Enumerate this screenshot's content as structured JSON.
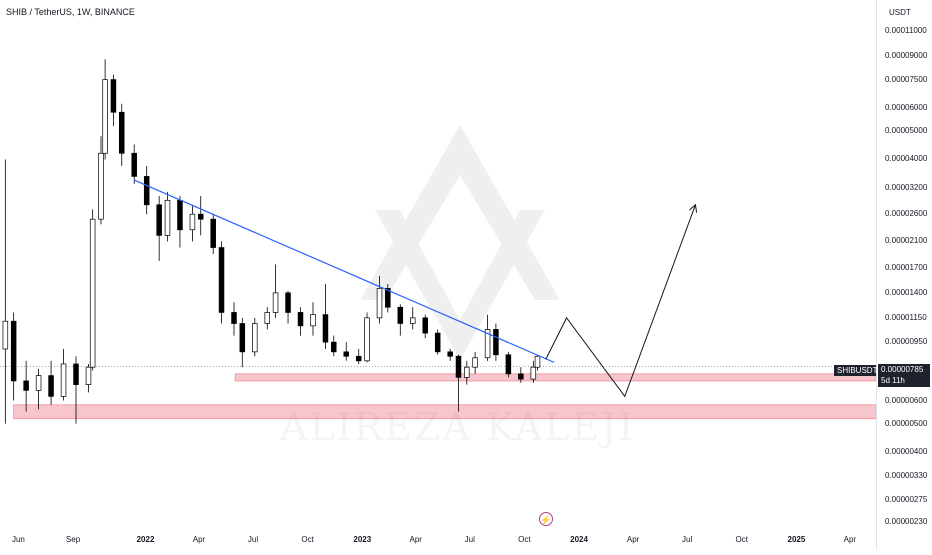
{
  "header": {
    "symbol_title": "SHIB / TetherUS, 1W, BINANCE"
  },
  "watermark": {
    "text": "ALIREZA KALEJI"
  },
  "price_scale": {
    "currency": "USDT",
    "ticks": [
      "0.00011000",
      "0.00009000",
      "0.00007500",
      "0.00006000",
      "0.00005000",
      "0.00004000",
      "0.00003200",
      "0.00002600",
      "0.00002100",
      "0.00001700",
      "0.00001400",
      "0.00001150",
      "0.00000950",
      "0.00000600",
      "0.00000500",
      "0.00000400",
      "0.00000330",
      "0.00000275",
      "0.00000230"
    ],
    "last_tag": {
      "symbol": "SHIBUSDT",
      "price": "0.00000785",
      "countdown": "5d 11h"
    }
  },
  "time_axis": {
    "labels": [
      "Jun",
      "Sep",
      "2022",
      "Apr",
      "Jul",
      "Oct",
      "2023",
      "Apr",
      "Jul",
      "Oct",
      "2024",
      "Apr",
      "Jul",
      "Oct",
      "2025",
      "Apr"
    ]
  },
  "colors": {
    "bull": "#ffffff",
    "bear": "#000000",
    "trendline": "#2962ff",
    "zone_fill": "#f7c6cc",
    "zone_stroke": "#f08c98",
    "projection": "#131722",
    "bolt": "#b33a8a"
  },
  "chart_data": {
    "type": "candlestick",
    "title": "SHIB / TetherUS, 1W, BINANCE",
    "y_scale": "log",
    "ylim": [
      2.2e-06,
      0.000118
    ],
    "x_range": [
      "2021-05-01",
      "2025-05-15"
    ],
    "candles": [
      {
        "date": "2021-05-10",
        "open": 9e-06,
        "high": 4e-05,
        "low": 5e-06,
        "close": 1.12e-05
      },
      {
        "date": "2021-05-24",
        "open": 1.12e-05,
        "high": 1.2e-05,
        "low": 6e-06,
        "close": 7e-06
      },
      {
        "date": "2021-06-14",
        "open": 7e-06,
        "high": 8.2e-06,
        "low": 5.5e-06,
        "close": 6.5e-06
      },
      {
        "date": "2021-07-05",
        "open": 6.5e-06,
        "high": 7.7e-06,
        "low": 5.6e-06,
        "close": 7.3e-06
      },
      {
        "date": "2021-07-26",
        "open": 7.3e-06,
        "high": 8.2e-06,
        "low": 5.8e-06,
        "close": 6.2e-06
      },
      {
        "date": "2021-08-16",
        "open": 6.2e-06,
        "high": 9e-06,
        "low": 6e-06,
        "close": 8e-06
      },
      {
        "date": "2021-09-06",
        "open": 8e-06,
        "high": 8.5e-06,
        "low": 5e-06,
        "close": 6.8e-06
      },
      {
        "date": "2021-09-27",
        "open": 6.8e-06,
        "high": 8e-06,
        "low": 6.4e-06,
        "close": 7.8e-06
      },
      {
        "date": "2021-10-04",
        "open": 7.8e-06,
        "high": 2.7e-05,
        "low": 7.6e-06,
        "close": 2.5e-05
      },
      {
        "date": "2021-10-18",
        "open": 2.5e-05,
        "high": 4.8e-05,
        "low": 2.4e-05,
        "close": 4.2e-05
      },
      {
        "date": "2021-10-25",
        "open": 4.2e-05,
        "high": 8.8e-05,
        "low": 4e-05,
        "close": 7.5e-05
      },
      {
        "date": "2021-11-08",
        "open": 7.5e-05,
        "high": 7.8e-05,
        "low": 5.2e-05,
        "close": 5.8e-05
      },
      {
        "date": "2021-11-22",
        "open": 5.8e-05,
        "high": 6.2e-05,
        "low": 3.8e-05,
        "close": 4.2e-05
      },
      {
        "date": "2021-12-13",
        "open": 4.2e-05,
        "high": 4.5e-05,
        "low": 3.3e-05,
        "close": 3.5e-05
      },
      {
        "date": "2022-01-03",
        "open": 3.5e-05,
        "high": 3.8e-05,
        "low": 2.6e-05,
        "close": 2.8e-05
      },
      {
        "date": "2022-01-24",
        "open": 2.8e-05,
        "high": 3e-05,
        "low": 1.8e-05,
        "close": 2.2e-05
      },
      {
        "date": "2022-02-07",
        "open": 2.2e-05,
        "high": 3.1e-05,
        "low": 2.1e-05,
        "close": 2.9e-05
      },
      {
        "date": "2022-02-28",
        "open": 2.9e-05,
        "high": 3e-05,
        "low": 2e-05,
        "close": 2.3e-05
      },
      {
        "date": "2022-03-21",
        "open": 2.3e-05,
        "high": 2.8e-05,
        "low": 2.1e-05,
        "close": 2.6e-05
      },
      {
        "date": "2022-04-04",
        "open": 2.6e-05,
        "high": 3e-05,
        "low": 2.2e-05,
        "close": 2.5e-05
      },
      {
        "date": "2022-04-25",
        "open": 2.5e-05,
        "high": 2.6e-05,
        "low": 1.9e-05,
        "close": 2e-05
      },
      {
        "date": "2022-05-09",
        "open": 2e-05,
        "high": 2.1e-05,
        "low": 1.1e-05,
        "close": 1.2e-05
      },
      {
        "date": "2022-05-30",
        "open": 1.2e-05,
        "high": 1.3e-05,
        "low": 1e-05,
        "close": 1.1e-05
      },
      {
        "date": "2022-06-13",
        "open": 1.1e-05,
        "high": 1.15e-05,
        "low": 7.8e-06,
        "close": 8.8e-06
      },
      {
        "date": "2022-07-04",
        "open": 8.8e-06,
        "high": 1.15e-05,
        "low": 8.5e-06,
        "close": 1.1e-05
      },
      {
        "date": "2022-07-25",
        "open": 1.1e-05,
        "high": 1.25e-05,
        "low": 1.05e-05,
        "close": 1.2e-05
      },
      {
        "date": "2022-08-08",
        "open": 1.2e-05,
        "high": 1.75e-05,
        "low": 1.15e-05,
        "close": 1.4e-05
      },
      {
        "date": "2022-08-29",
        "open": 1.4e-05,
        "high": 1.42e-05,
        "low": 1.1e-05,
        "close": 1.2e-05
      },
      {
        "date": "2022-09-19",
        "open": 1.2e-05,
        "high": 1.25e-05,
        "low": 1e-05,
        "close": 1.08e-05
      },
      {
        "date": "2022-10-10",
        "open": 1.08e-05,
        "high": 1.3e-05,
        "low": 1e-05,
        "close": 1.18e-05
      },
      {
        "date": "2022-10-31",
        "open": 1.18e-05,
        "high": 1.5e-05,
        "low": 9e-06,
        "close": 9.5e-06
      },
      {
        "date": "2022-11-14",
        "open": 9.5e-06,
        "high": 1e-05,
        "low": 8.5e-06,
        "close": 8.8e-06
      },
      {
        "date": "2022-12-05",
        "open": 8.8e-06,
        "high": 9.5e-06,
        "low": 8.2e-06,
        "close": 8.5e-06
      },
      {
        "date": "2022-12-26",
        "open": 8.5e-06,
        "high": 9e-06,
        "low": 8e-06,
        "close": 8.2e-06
      },
      {
        "date": "2023-01-09",
        "open": 8.2e-06,
        "high": 1.2e-05,
        "low": 8.1e-06,
        "close": 1.15e-05
      },
      {
        "date": "2023-01-30",
        "open": 1.15e-05,
        "high": 1.6e-05,
        "low": 1.1e-05,
        "close": 1.45e-05
      },
      {
        "date": "2023-02-13",
        "open": 1.45e-05,
        "high": 1.5e-05,
        "low": 1.2e-05,
        "close": 1.25e-05
      },
      {
        "date": "2023-03-06",
        "open": 1.25e-05,
        "high": 1.28e-05,
        "low": 1e-05,
        "close": 1.1e-05
      },
      {
        "date": "2023-03-27",
        "open": 1.1e-05,
        "high": 1.25e-05,
        "low": 1.05e-05,
        "close": 1.15e-05
      },
      {
        "date": "2023-04-17",
        "open": 1.15e-05,
        "high": 1.18e-05,
        "low": 9.8e-06,
        "close": 1.02e-05
      },
      {
        "date": "2023-05-08",
        "open": 1.02e-05,
        "high": 1.05e-05,
        "low": 8.6e-06,
        "close": 8.8e-06
      },
      {
        "date": "2023-05-29",
        "open": 8.8e-06,
        "high": 9e-06,
        "low": 8.2e-06,
        "close": 8.5e-06
      },
      {
        "date": "2023-06-12",
        "open": 8.5e-06,
        "high": 8.6e-06,
        "low": 5.5e-06,
        "close": 7.2e-06
      },
      {
        "date": "2023-06-26",
        "open": 7.2e-06,
        "high": 8.2e-06,
        "low": 6.8e-06,
        "close": 7.8e-06
      },
      {
        "date": "2023-07-10",
        "open": 7.8e-06,
        "high": 8.8e-06,
        "low": 7.4e-06,
        "close": 8.4e-06
      },
      {
        "date": "2023-07-31",
        "open": 8.4e-06,
        "high": 1.18e-05,
        "low": 8.2e-06,
        "close": 1.05e-05
      },
      {
        "date": "2023-08-14",
        "open": 1.05e-05,
        "high": 1.1e-05,
        "low": 8.2e-06,
        "close": 8.6e-06
      },
      {
        "date": "2023-09-04",
        "open": 8.6e-06,
        "high": 8.8e-06,
        "low": 7.2e-06,
        "close": 7.4e-06
      },
      {
        "date": "2023-09-25",
        "open": 7.4e-06,
        "high": 7.8e-06,
        "low": 6.9e-06,
        "close": 7.1e-06
      },
      {
        "date": "2023-10-16",
        "open": 7.1e-06,
        "high": 8.2e-06,
        "low": 6.9e-06,
        "close": 7.8e-06
      },
      {
        "date": "2023-10-23",
        "open": 7.8e-06,
        "high": 8.6e-06,
        "low": 7.6e-06,
        "close": 8.5e-06
      }
    ],
    "annotations": {
      "trendline": [
        {
          "date": "2021-12-13",
          "price": 3.4e-05
        },
        {
          "date": "2023-11-20",
          "price": 8.1e-06
        }
      ],
      "support_zones": [
        {
          "from": "2022-06-01",
          "to": "2025-05-15",
          "low": 7e-06,
          "high": 7.4e-06
        },
        {
          "from": "2021-05-24",
          "to": "2025-05-15",
          "low": 5.2e-06,
          "high": 5.8e-06
        }
      ],
      "projection": [
        {
          "date": "2023-11-06",
          "price": 8.3e-06
        },
        {
          "date": "2023-12-11",
          "price": 1.15e-05
        },
        {
          "date": "2024-03-18",
          "price": 6.2e-06
        },
        {
          "date": "2024-07-15",
          "price": 2.8e-05
        }
      ],
      "last_price": 7.85e-06
    }
  }
}
